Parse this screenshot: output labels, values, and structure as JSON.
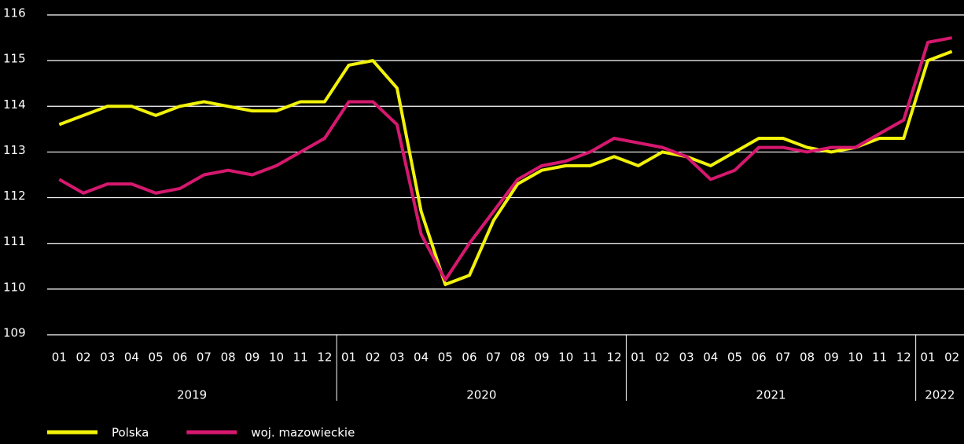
{
  "chart_data": {
    "type": "line",
    "categories": [
      "01",
      "02",
      "03",
      "04",
      "05",
      "06",
      "07",
      "08",
      "09",
      "10",
      "11",
      "12",
      "01",
      "02",
      "03",
      "04",
      "05",
      "06",
      "07",
      "08",
      "09",
      "10",
      "11",
      "12",
      "01",
      "02",
      "03",
      "04",
      "05",
      "06",
      "07",
      "08",
      "09",
      "10",
      "11",
      "12",
      "01",
      "02"
    ],
    "years": [
      "2019",
      "2020",
      "2021",
      "2022"
    ],
    "series": [
      {
        "name": "Polska",
        "color": "#f2f20a",
        "values": [
          113.6,
          113.8,
          114.0,
          114.0,
          113.8,
          114.0,
          114.1,
          114.0,
          113.9,
          113.9,
          114.1,
          114.1,
          114.9,
          115.0,
          114.4,
          111.7,
          110.1,
          110.3,
          111.5,
          112.3,
          112.6,
          112.7,
          112.7,
          112.9,
          112.7,
          113.0,
          112.9,
          112.7,
          113.0,
          113.3,
          113.3,
          113.1,
          113.0,
          113.1,
          113.3,
          113.3,
          115.0,
          115.2
        ]
      },
      {
        "name": "woj. mazowieckie",
        "color": "#d6186f",
        "values": [
          112.4,
          112.1,
          112.3,
          112.3,
          112.1,
          112.2,
          112.5,
          112.6,
          112.5,
          112.7,
          113.0,
          113.3,
          114.1,
          114.1,
          113.6,
          111.2,
          110.2,
          111.0,
          111.7,
          112.4,
          112.7,
          112.8,
          113.0,
          113.3,
          113.2,
          113.1,
          112.9,
          112.4,
          112.6,
          113.1,
          113.1,
          113.0,
          113.1,
          113.1,
          113.4,
          113.7,
          115.4,
          115.5
        ]
      }
    ],
    "ylim": [
      109,
      116
    ],
    "yticks": [
      109,
      110,
      111,
      112,
      113,
      114,
      115,
      116
    ],
    "grid": true
  }
}
